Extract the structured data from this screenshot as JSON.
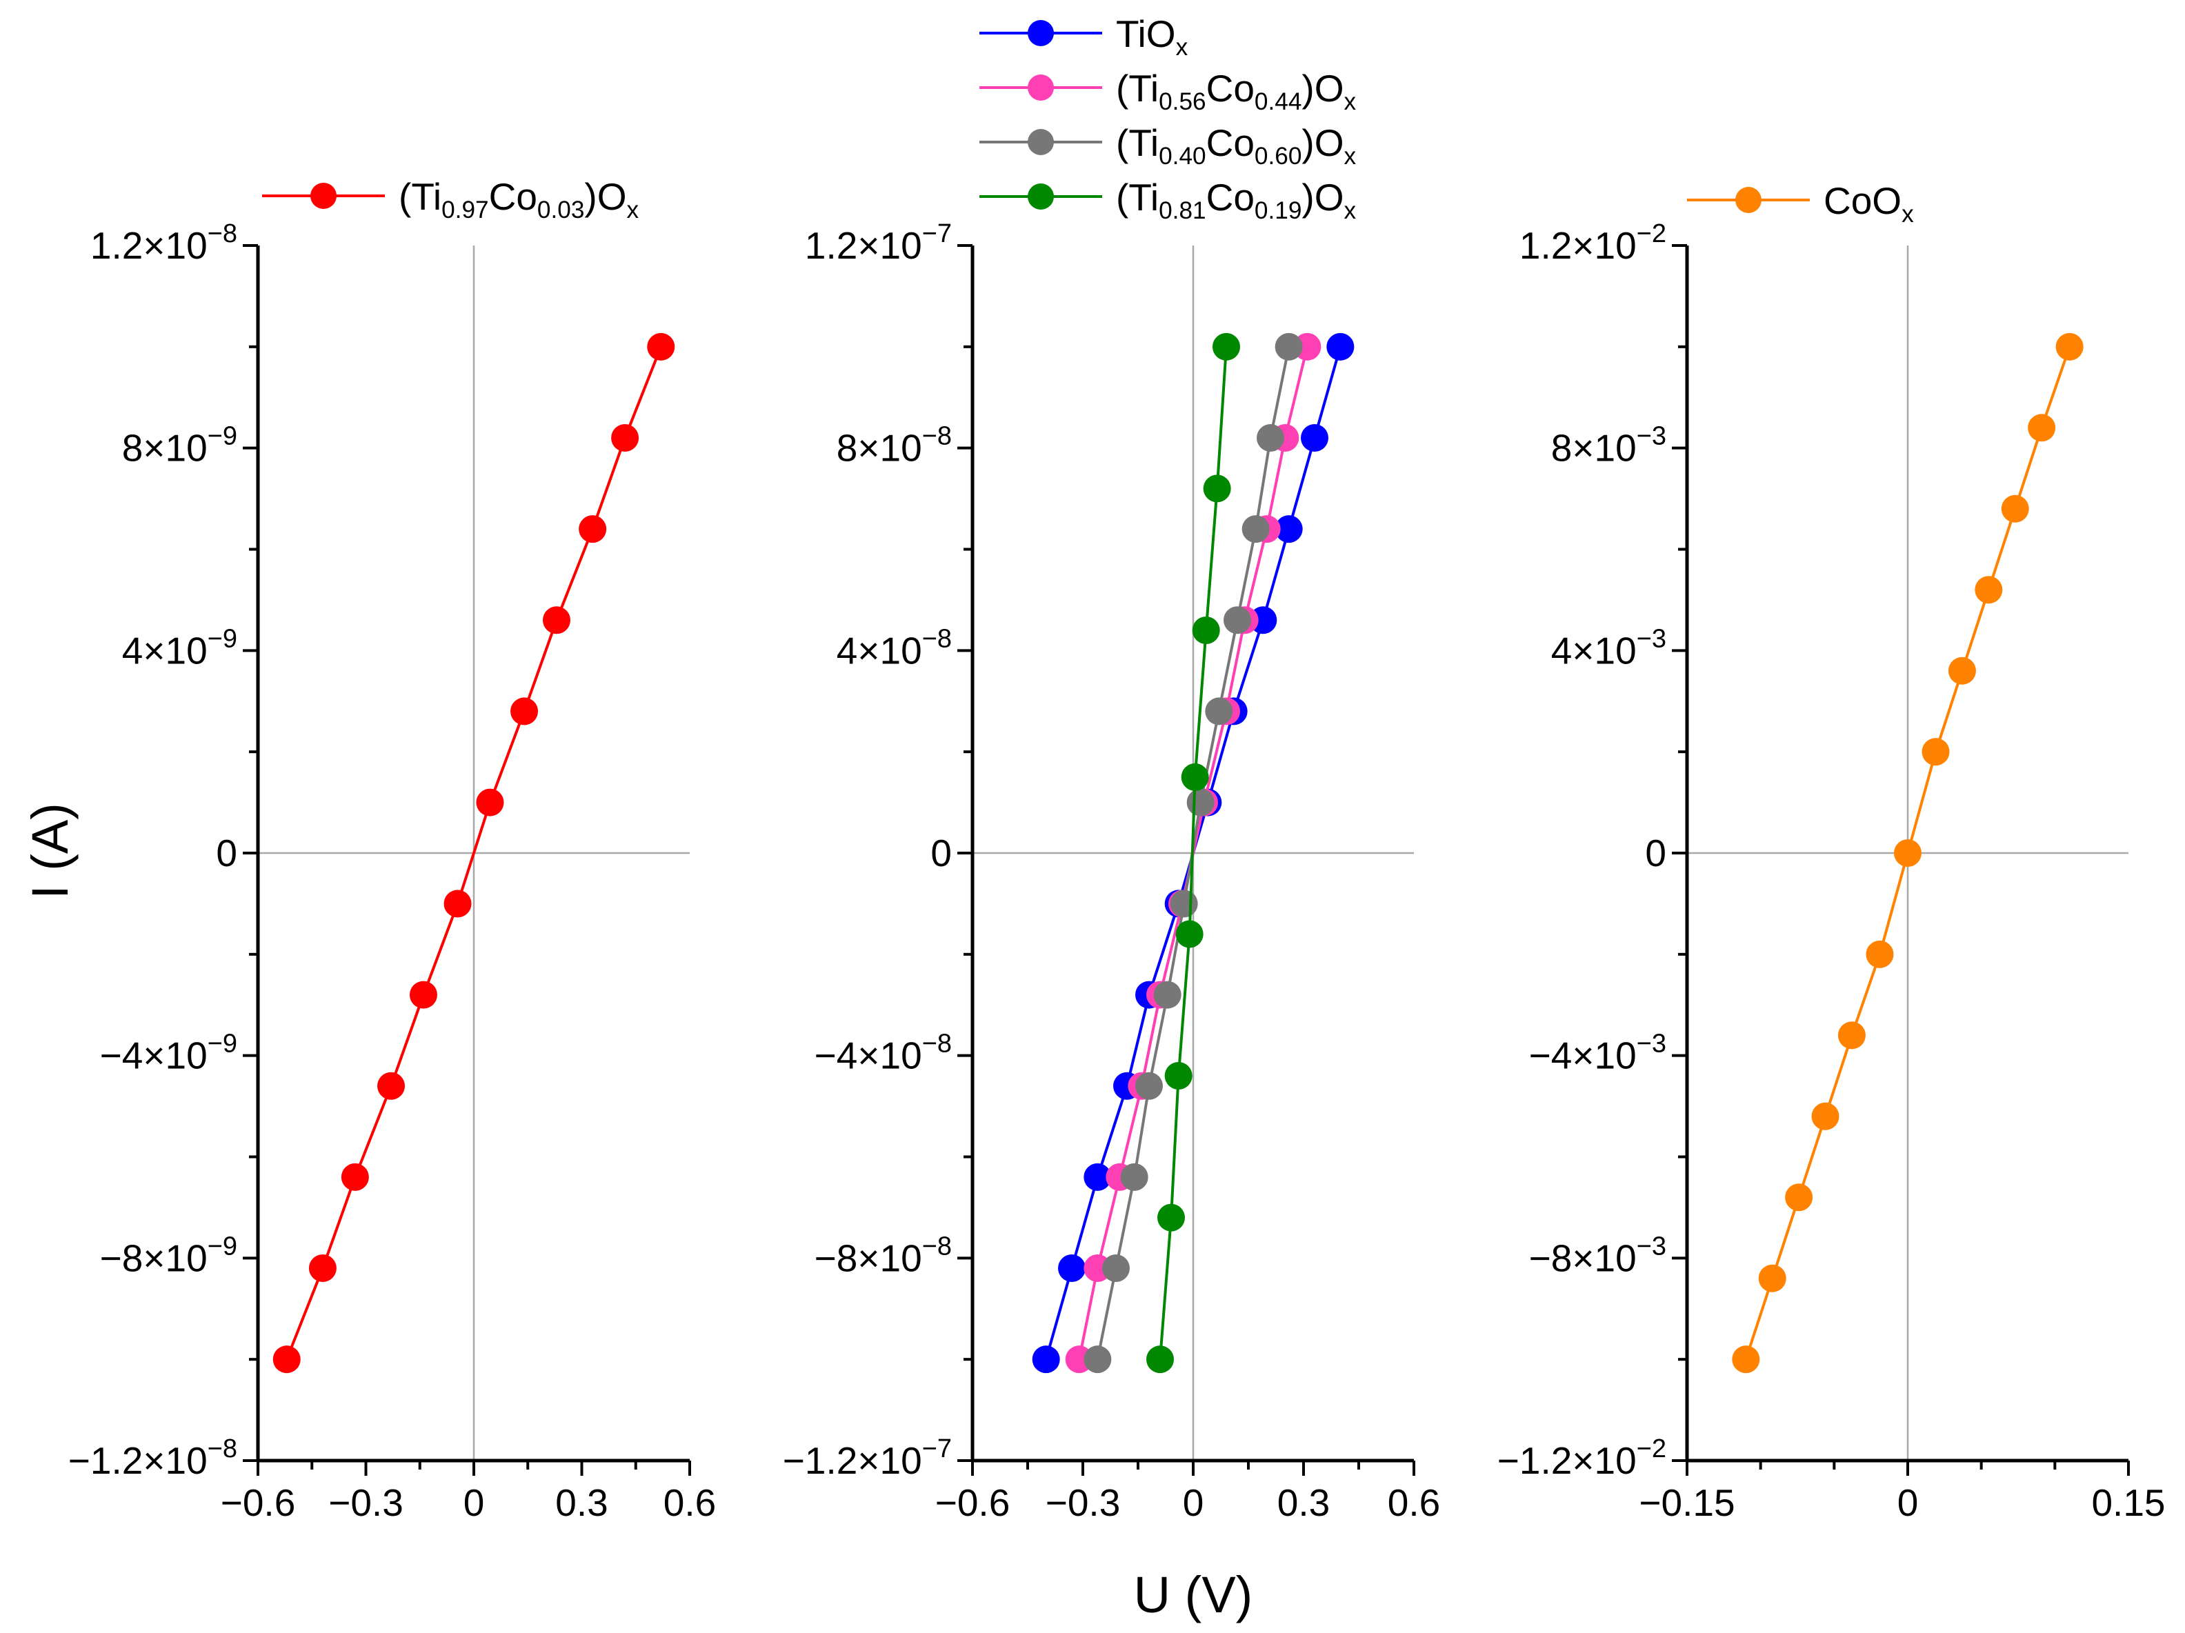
{
  "chart_data": {
    "type": "line",
    "shared_ylabel": "I (A)",
    "shared_xlabel": "U (V)",
    "panels": [
      {
        "xlim": [
          -0.6,
          0.6
        ],
        "ylim": [
          -1.2e-08,
          1.2e-08
        ],
        "xticks": [
          {
            "v": -0.6,
            "label": "−0.6"
          },
          {
            "v": -0.3,
            "label": "−0.3"
          },
          {
            "v": 0,
            "label": "0"
          },
          {
            "v": 0.3,
            "label": "0.3"
          },
          {
            "v": 0.6,
            "label": "0.6"
          }
        ],
        "yticks": [
          {
            "v": 1.2e-08,
            "mant": "1.2×10",
            "exp": "−8"
          },
          {
            "v": 8e-09,
            "mant": "8×10",
            "exp": "−9"
          },
          {
            "v": 4e-09,
            "mant": "4×10",
            "exp": "−9"
          },
          {
            "v": 0,
            "mant": "0",
            "exp": ""
          },
          {
            "v": -4e-09,
            "mant": "−4×10",
            "exp": "−9"
          },
          {
            "v": -8e-09,
            "mant": "−8×10",
            "exp": "−9"
          },
          {
            "v": -1.2e-08,
            "mant": "−1.2×10",
            "exp": "−8"
          }
        ],
        "series": [
          {
            "name": "(Ti0.97Co0.03)Ox",
            "label": {
              "pre": "(Ti",
              "s1": "0.97",
              "mid": "Co",
              "s2": "0.03",
              "post": ")O",
              "s3": "x"
            },
            "color": "#ff0000",
            "x": [
              -0.52,
              -0.42,
              -0.33,
              -0.23,
              -0.14,
              -0.045,
              0.045,
              0.14,
              0.23,
              0.33,
              0.42,
              0.52
            ],
            "y": [
              -1e-08,
              -8.2e-09,
              -6.4e-09,
              -4.6e-09,
              -2.8e-09,
              -1e-09,
              1e-09,
              2.8e-09,
              4.6e-09,
              6.4e-09,
              8.2e-09,
              1e-08
            ]
          }
        ]
      },
      {
        "xlim": [
          -0.6,
          0.6
        ],
        "ylim": [
          -1.2e-07,
          1.2e-07
        ],
        "xticks": [
          {
            "v": -0.6,
            "label": "−0.6"
          },
          {
            "v": -0.3,
            "label": "−0.3"
          },
          {
            "v": 0,
            "label": "0"
          },
          {
            "v": 0.3,
            "label": "0.3"
          },
          {
            "v": 0.6,
            "label": "0.6"
          }
        ],
        "yticks": [
          {
            "v": 1.2e-07,
            "mant": "1.2×10",
            "exp": "−7"
          },
          {
            "v": 8e-08,
            "mant": "8×10",
            "exp": "−8"
          },
          {
            "v": 4e-08,
            "mant": "4×10",
            "exp": "−8"
          },
          {
            "v": 0,
            "mant": "0",
            "exp": ""
          },
          {
            "v": -4e-08,
            "mant": "−4×10",
            "exp": "−8"
          },
          {
            "v": -8e-08,
            "mant": "−8×10",
            "exp": "−8"
          },
          {
            "v": -1.2e-07,
            "mant": "−1.2×10",
            "exp": "−7"
          }
        ],
        "series": [
          {
            "name": "TiOx",
            "label": {
              "pre": "TiO",
              "s1": "",
              "mid": "",
              "s2": "",
              "post": "",
              "s3": "x"
            },
            "color": "#0000ff",
            "x": [
              -0.4,
              -0.33,
              -0.26,
              -0.18,
              -0.12,
              -0.04,
              0.04,
              0.11,
              0.19,
              0.26,
              0.33,
              0.4
            ],
            "y": [
              -1e-07,
              -8.2e-08,
              -6.4e-08,
              -4.6e-08,
              -2.8e-08,
              -1e-08,
              1e-08,
              2.8e-08,
              4.6e-08,
              6.4e-08,
              8.2e-08,
              1e-07
            ]
          },
          {
            "name": "(Ti0.56Co0.44)Ox",
            "label": {
              "pre": "(Ti",
              "s1": "0.56",
              "mid": "Co",
              "s2": "0.44",
              "post": ")O",
              "s3": "x"
            },
            "color": "#ff3fb4",
            "x": [
              -0.31,
              -0.26,
              -0.2,
              -0.14,
              -0.09,
              -0.03,
              0.03,
              0.09,
              0.14,
              0.2,
              0.25,
              0.31
            ],
            "y": [
              -1e-07,
              -8.2e-08,
              -6.4e-08,
              -4.6e-08,
              -2.8e-08,
              -1e-08,
              1e-08,
              2.8e-08,
              4.6e-08,
              6.4e-08,
              8.2e-08,
              1e-07
            ]
          },
          {
            "name": "(Ti0.40Co0.60)Ox",
            "label": {
              "pre": "(Ti",
              "s1": "0.40",
              "mid": "Co",
              "s2": "0.60",
              "post": ")O",
              "s3": "x"
            },
            "color": "#777777",
            "x": [
              -0.26,
              -0.21,
              -0.16,
              -0.12,
              -0.07,
              -0.025,
              0.02,
              0.07,
              0.12,
              0.17,
              0.21,
              0.26
            ],
            "y": [
              -1e-07,
              -8.2e-08,
              -6.4e-08,
              -4.6e-08,
              -2.8e-08,
              -1e-08,
              1e-08,
              2.8e-08,
              4.6e-08,
              6.4e-08,
              8.2e-08,
              1e-07
            ]
          },
          {
            "name": "(Ti0.81Co0.19)Ox",
            "label": {
              "pre": "(Ti",
              "s1": "0.81",
              "mid": "Co",
              "s2": "0.19",
              "post": ")O",
              "s3": "x"
            },
            "color": "#008800",
            "x": [
              -0.09,
              -0.06,
              -0.04,
              -0.01,
              0.005,
              0.035,
              0.065,
              0.09
            ],
            "y": [
              -1e-07,
              -7.2e-08,
              -4.4e-08,
              -1.6e-08,
              1.5e-08,
              4.4e-08,
              7.2e-08,
              1e-07
            ]
          }
        ]
      },
      {
        "xlim": [
          -0.15,
          0.15
        ],
        "ylim": [
          -0.012,
          0.012
        ],
        "xticks": [
          {
            "v": -0.15,
            "label": "−0.15"
          },
          {
            "v": 0,
            "label": "0"
          },
          {
            "v": 0.15,
            "label": "0.15"
          }
        ],
        "yticks": [
          {
            "v": 0.012,
            "mant": "1.2×10",
            "exp": "−2"
          },
          {
            "v": 0.008,
            "mant": "8×10",
            "exp": "−3"
          },
          {
            "v": 0.004,
            "mant": "4×10",
            "exp": "−3"
          },
          {
            "v": 0,
            "mant": "0",
            "exp": ""
          },
          {
            "v": -0.004,
            "mant": "−4×10",
            "exp": "−3"
          },
          {
            "v": -0.008,
            "mant": "−8×10",
            "exp": "−3"
          },
          {
            "v": -0.012,
            "mant": "−1.2×10",
            "exp": "−2"
          }
        ],
        "series": [
          {
            "name": "CoOx",
            "label": {
              "pre": "CoO",
              "s1": "",
              "mid": "",
              "s2": "",
              "post": "",
              "s3": "x"
            },
            "color": "#ff8200",
            "x": [
              -0.11,
              -0.092,
              -0.074,
              -0.056,
              -0.038,
              -0.019,
              0,
              0.019,
              0.037,
              0.055,
              0.073,
              0.091,
              0.11
            ],
            "y": [
              -0.01,
              -0.0084,
              -0.0068,
              -0.0052,
              -0.0036,
              -0.002,
              0,
              0.002,
              0.0036,
              0.0052,
              0.0068,
              0.0084,
              0.01
            ]
          }
        ]
      }
    ]
  }
}
